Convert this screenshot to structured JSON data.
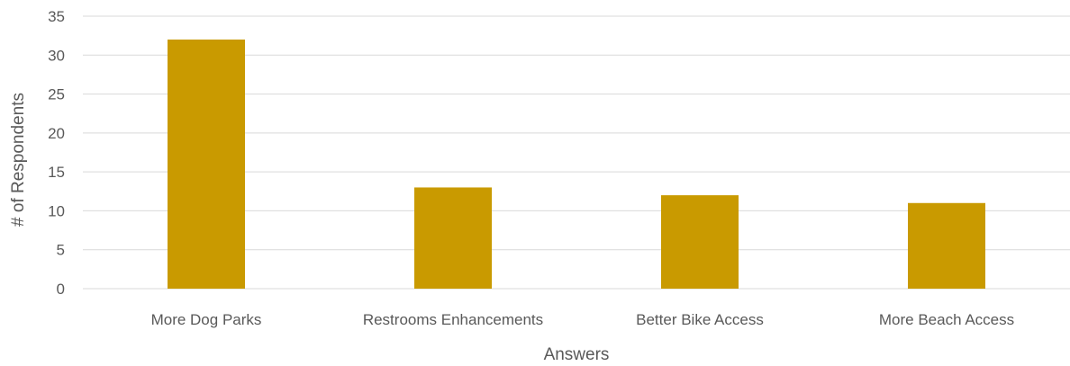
{
  "chart_data": {
    "type": "bar",
    "title": "",
    "xlabel": "Answers",
    "ylabel": "# of Respondents",
    "categories": [
      "More Dog Parks",
      "Restrooms Enhancements",
      "Better Bike Access",
      "More Beach Access"
    ],
    "values": [
      32,
      13,
      12,
      11
    ],
    "ylim": [
      0,
      35
    ],
    "yticks": [
      0,
      5,
      10,
      15,
      20,
      25,
      30,
      35
    ],
    "grid": true,
    "legend": "none",
    "bar_color": "#C99A00",
    "gridline_color": "#D9D9D9",
    "text_color": "#595959"
  }
}
